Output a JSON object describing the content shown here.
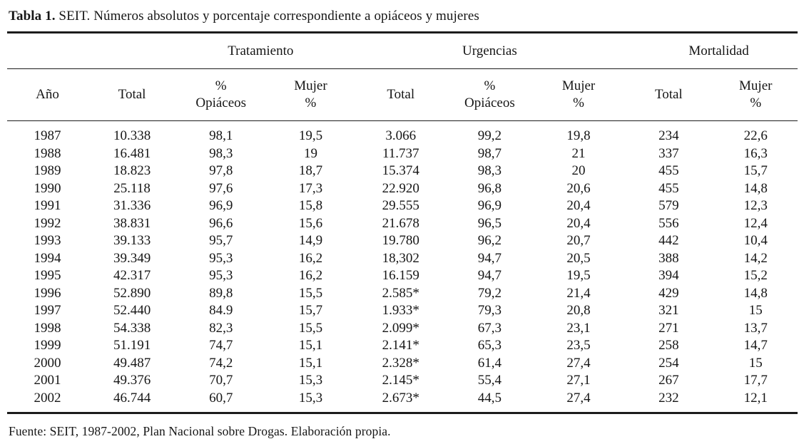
{
  "title": {
    "label": "Tabla 1.",
    "text": " SEIT. Números absolutos y porcentaje correspondiente a opiáceos y mujeres"
  },
  "groups": [
    {
      "label": "Tratamiento"
    },
    {
      "label": "Urgencias"
    },
    {
      "label": "Mortalidad"
    }
  ],
  "columns": [
    "Año",
    "Total",
    "%\nOpiáceos",
    "Mujer\n%",
    "Total",
    "%\nOpiáceos",
    "Mujer\n%",
    "Total",
    "Mujer\n%"
  ],
  "rows": [
    [
      "1987",
      "10.338",
      "98,1",
      "19,5",
      "3.066",
      "99,2",
      "19,8",
      "234",
      "22,6"
    ],
    [
      "1988",
      "16.481",
      "98,3",
      "19",
      "11.737",
      "98,7",
      "21",
      "337",
      "16,3"
    ],
    [
      "1989",
      "18.823",
      "97,8",
      "18,7",
      "15.374",
      "98,3",
      "20",
      "455",
      "15,7"
    ],
    [
      "1990",
      "25.118",
      "97,6",
      "17,3",
      "22.920",
      "96,8",
      "20,6",
      "455",
      "14,8"
    ],
    [
      "1991",
      "31.336",
      "96,9",
      "15,8",
      "29.555",
      "96,9",
      "20,4",
      "579",
      "12,3"
    ],
    [
      "1992",
      "38.831",
      "96,6",
      "15,6",
      "21.678",
      "96,5",
      "20,4",
      "556",
      "12,4"
    ],
    [
      "1993",
      "39.133",
      "95,7",
      "14,9",
      "19.780",
      "96,2",
      "20,7",
      "442",
      "10,4"
    ],
    [
      "1994",
      "39.349",
      "95,3",
      "16,2",
      "18,302",
      "94,7",
      "20,5",
      "388",
      "14,2"
    ],
    [
      "1995",
      "42.317",
      "95,3",
      "16,2",
      "16.159",
      "94,7",
      "19,5",
      "394",
      "15,2"
    ],
    [
      "1996",
      "52.890",
      "89,8",
      "15,5",
      "2.585*",
      "79,2",
      "21,4",
      "429",
      "14,8"
    ],
    [
      "1997",
      "52.440",
      "84.9",
      "15,7",
      "1.933*",
      "79,3",
      "20,8",
      "321",
      "15"
    ],
    [
      "1998",
      "54.338",
      "82,3",
      "15,5",
      "2.099*",
      "67,3",
      "23,1",
      "271",
      "13,7"
    ],
    [
      "1999",
      "51.191",
      "74,7",
      "15,1",
      "2.141*",
      "65,3",
      "23,5",
      "258",
      "14,7"
    ],
    [
      "2000",
      "49.487",
      "74,2",
      "15,1",
      "2.328*",
      "61,4",
      "27,4",
      "254",
      "15"
    ],
    [
      "2001",
      "49.376",
      "70,7",
      "15,3",
      "2.145*",
      "55,4",
      "27,1",
      "267",
      "17,7"
    ],
    [
      "2002",
      "46.744",
      "60,7",
      "15,3",
      "2.673*",
      "44,5",
      "27,4",
      "232",
      "12,1"
    ]
  ],
  "source": "Fuente: SEIT, 1987-2002, Plan Nacional sobre Drogas. Elaboración propia."
}
